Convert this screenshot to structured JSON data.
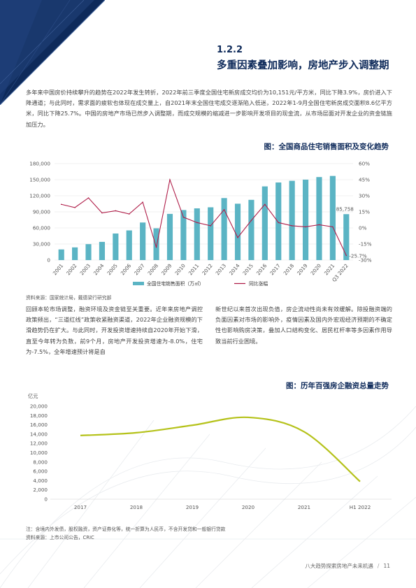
{
  "section": {
    "number": "1.2.2",
    "title": "多重因素叠加影响，房地产步入调整期"
  },
  "intro_paragraph": "多年来中国房价持续攀升的趋势在2022年发生转折，2022年前三季度全国住宅新房成交均价为10,151元/平方米，同比下降3.9%，房价进入下降通道；与此同时，需求面的疲软也体现在成交量上，自2021年末全国住宅成交逐渐陷入低迷，2022年1-9月全国住宅新房成交面积8.6亿平方米，同比下降25.7%。中国的房地产市场已然步入调整期，而成交规模的缩减进一步影响开发项目的现金流，从市场层面对开发企业的资金链施加压力。",
  "figure1": {
    "title": "图：全国商品住宅销售面积及变化趋势",
    "source": "资料来源：国家统计局，戴德梁行研究部"
  },
  "left_column": "回顾本轮市场调整，融资环境及资金链至关重要。近年来房地产调控政策频出，“三道红线”政策收紧融资渠道，2022年企业融资规模的下滑趋势仍在扩大。与此同时，开发投资增速持续自2020年开始下滑，直至今年转为负数，前9个月，房地产开发投资增速为-8.0%，住宅为-7.5%，全年增速预计将是自",
  "right_column": "新世纪以来首次出现负值，房企流动性尚未有效缓解。除投融资端的负面因素对市场的影响外，疫情因素及国内外宏观经济预期的不确定性也影响购房决策，叠加人口结构变化、居民杠杆率等多因素作用导致当前行业困境。",
  "figure2": {
    "title": "图：历年百强房企融资总量走势",
    "note": "注：含境内外发债，股权融资，资产证券化等，统一折算为人民币，不含开发贷和一般银行贷款",
    "source": "资料来源：上市公司公告，CRIC"
  },
  "footer": {
    "text": "八大趋势探索房地产未来机遇",
    "page": "11"
  },
  "colors": {
    "navy": "#0e2a5a",
    "bar": "#5bb4c4",
    "line": "#b01f4a",
    "trend": "#b5c21a"
  },
  "chart_data": [
    {
      "type": "bar",
      "categories": [
        "2001",
        "2002",
        "2003",
        "2004",
        "2005",
        "2006",
        "2007",
        "2008",
        "2009",
        "2010",
        "2011",
        "2012",
        "2013",
        "2014",
        "2015",
        "2016",
        "2017",
        "2018",
        "2019",
        "2020",
        "2021",
        "Q3 2022"
      ],
      "series": [
        {
          "name": "全国住宅销售面积（万㎡）",
          "type": "bar",
          "axis": "left",
          "values": [
            19900,
            23700,
            29800,
            34000,
            49600,
            55400,
            70100,
            59300,
            86200,
            93400,
            96500,
            98500,
            115700,
            105200,
            112400,
            137500,
            144800,
            147900,
            150100,
            154900,
            157000,
            85758
          ]
        },
        {
          "name": "同比涨幅",
          "type": "line",
          "axis": "right",
          "values": [
            22,
            19,
            28,
            14,
            16,
            13,
            24,
            -18,
            45,
            10,
            5,
            2,
            17,
            -9,
            7,
            22,
            5,
            2,
            1,
            3,
            1,
            -25.7
          ]
        }
      ],
      "data_labels": [
        "85,758",
        "-25.7%"
      ],
      "y_left": {
        "ticks": [
          "0",
          "30,000",
          "60,000",
          "90,000",
          "120,000",
          "150,000",
          "180,000"
        ],
        "range": [
          0,
          180000
        ]
      },
      "y_right": {
        "ticks": [
          "60%",
          "45%",
          "30%",
          "15%",
          "0%",
          "-15%",
          "-30%"
        ],
        "range": [
          -30,
          60
        ]
      },
      "legend": "bottom"
    },
    {
      "type": "line",
      "y_unit": "亿元",
      "x": [
        "2017",
        "2018",
        "2019",
        "2020",
        "2021",
        "H1 2022"
      ],
      "values": [
        13700,
        14300,
        15900,
        17600,
        14500,
        3800
      ],
      "y_ticks": [
        "0",
        "2,000",
        "4,000",
        "6,000",
        "8,000",
        "10,000",
        "12,000",
        "14,000",
        "16,000",
        "18,000",
        "20,000"
      ],
      "ylim": [
        0,
        20000
      ]
    }
  ]
}
